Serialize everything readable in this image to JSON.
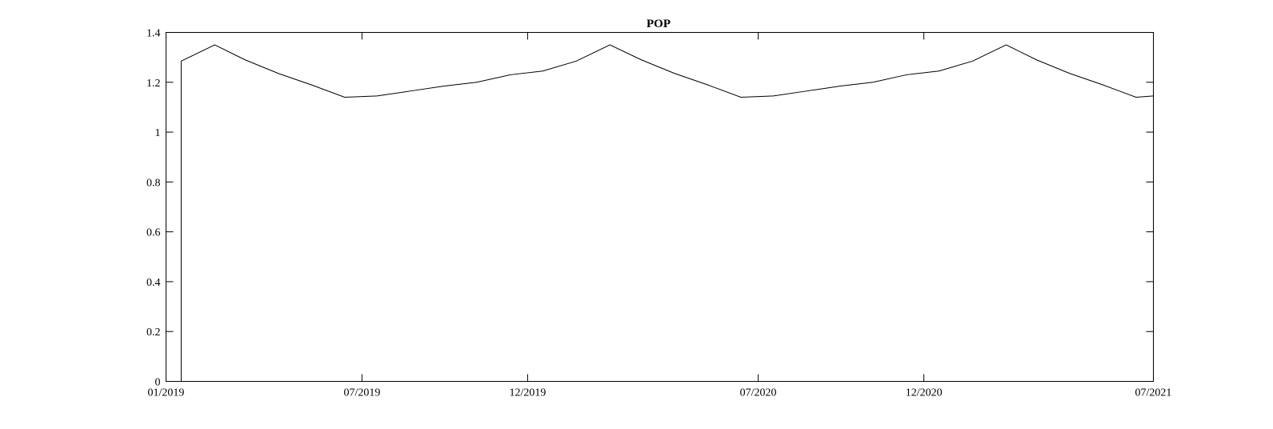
{
  "chart_data": {
    "type": "line",
    "title": "POP",
    "xlabel": "",
    "ylabel": "",
    "grid": false,
    "xlim": [
      "2019-01-01",
      "2021-07-01"
    ],
    "ylim": [
      0,
      1.4
    ],
    "x_ticks": [
      {
        "date": "2019-01-01",
        "label": "01/2019"
      },
      {
        "date": "2019-07-01",
        "label": "07/2019"
      },
      {
        "date": "2019-12-01",
        "label": "12/2019"
      },
      {
        "date": "2020-07-01",
        "label": "07/2020"
      },
      {
        "date": "2020-12-01",
        "label": "12/2020"
      },
      {
        "date": "2021-07-01",
        "label": "07/2021"
      }
    ],
    "y_ticks": [
      {
        "value": 0,
        "label": "0"
      },
      {
        "value": 0.2,
        "label": "0.2"
      },
      {
        "value": 0.4,
        "label": "0.4"
      },
      {
        "value": 0.6,
        "label": "0.6"
      },
      {
        "value": 0.8,
        "label": "0.8"
      },
      {
        "value": 1.0,
        "label": "1"
      },
      {
        "value": 1.2,
        "label": "1.2"
      },
      {
        "value": 1.4,
        "label": "1.4"
      }
    ],
    "series": [
      {
        "color": "#000000",
        "points": [
          {
            "x": "2019-01-01",
            "y": 0
          },
          {
            "x": "2019-01-15",
            "y": 0
          },
          {
            "x": "2019-01-15",
            "y": 1.285
          },
          {
            "x": "2019-02-15",
            "y": 1.35
          },
          {
            "x": "2019-03-15",
            "y": 1.29
          },
          {
            "x": "2019-04-15",
            "y": 1.235
          },
          {
            "x": "2019-05-15",
            "y": 1.19
          },
          {
            "x": "2019-06-15",
            "y": 1.14
          },
          {
            "x": "2019-07-15",
            "y": 1.145
          },
          {
            "x": "2019-08-15",
            "y": 1.165
          },
          {
            "x": "2019-09-15",
            "y": 1.185
          },
          {
            "x": "2019-10-15",
            "y": 1.2
          },
          {
            "x": "2019-11-15",
            "y": 1.23
          },
          {
            "x": "2019-12-15",
            "y": 1.245
          },
          {
            "x": "2020-01-15",
            "y": 1.285
          },
          {
            "x": "2020-02-15",
            "y": 1.35
          },
          {
            "x": "2020-03-15",
            "y": 1.29
          },
          {
            "x": "2020-04-15",
            "y": 1.235
          },
          {
            "x": "2020-05-15",
            "y": 1.19
          },
          {
            "x": "2020-06-15",
            "y": 1.14
          },
          {
            "x": "2020-07-15",
            "y": 1.145
          },
          {
            "x": "2020-08-15",
            "y": 1.165
          },
          {
            "x": "2020-09-15",
            "y": 1.185
          },
          {
            "x": "2020-10-15",
            "y": 1.2
          },
          {
            "x": "2020-11-15",
            "y": 1.23
          },
          {
            "x": "2020-12-15",
            "y": 1.245
          },
          {
            "x": "2021-01-15",
            "y": 1.285
          },
          {
            "x": "2021-02-15",
            "y": 1.35
          },
          {
            "x": "2021-03-15",
            "y": 1.29
          },
          {
            "x": "2021-04-15",
            "y": 1.235
          },
          {
            "x": "2021-05-15",
            "y": 1.19
          },
          {
            "x": "2021-06-15",
            "y": 1.14
          },
          {
            "x": "2021-07-01",
            "y": 1.145
          }
        ]
      }
    ]
  }
}
